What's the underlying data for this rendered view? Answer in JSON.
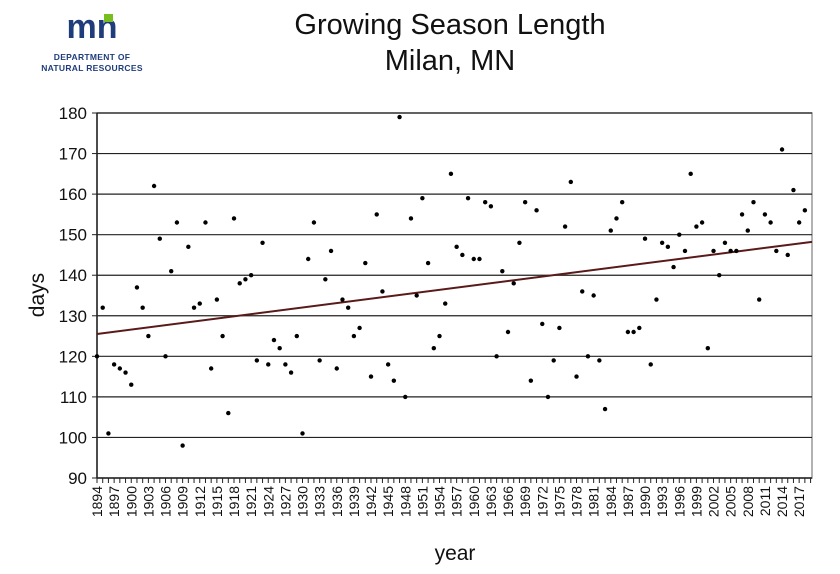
{
  "logo": {
    "mark": "mn",
    "line1": "DEPARTMENT OF",
    "line2": "NATURAL RESOURCES",
    "colors": {
      "blue": "#1f3d7a",
      "green": "#78be20"
    }
  },
  "chart_data": {
    "type": "scatter",
    "title": "Growing Season Length",
    "subtitle": "Milan, MN",
    "xlabel": "year",
    "ylabel": "days",
    "ylim": [
      90,
      180
    ],
    "yticks": [
      90,
      100,
      110,
      120,
      130,
      140,
      150,
      160,
      170,
      180
    ],
    "xlim": [
      1894,
      2018
    ],
    "xtick_step": 3,
    "grid": "horizontal",
    "marker_color": "#000000",
    "trendline": {
      "color": "#5a1a1a",
      "start": [
        1894,
        125.5
      ],
      "end": [
        2018,
        148
      ]
    },
    "x": [
      1894,
      1895,
      1896,
      1897,
      1898,
      1899,
      1900,
      1901,
      1902,
      1903,
      1904,
      1905,
      1906,
      1907,
      1908,
      1909,
      1910,
      1911,
      1912,
      1913,
      1914,
      1915,
      1916,
      1917,
      1918,
      1919,
      1920,
      1921,
      1922,
      1923,
      1924,
      1925,
      1926,
      1927,
      1928,
      1929,
      1930,
      1931,
      1932,
      1933,
      1934,
      1935,
      1936,
      1937,
      1938,
      1939,
      1940,
      1941,
      1942,
      1943,
      1944,
      1945,
      1946,
      1947,
      1948,
      1949,
      1950,
      1951,
      1952,
      1953,
      1954,
      1955,
      1956,
      1957,
      1958,
      1959,
      1960,
      1961,
      1962,
      1963,
      1964,
      1965,
      1966,
      1967,
      1968,
      1969,
      1970,
      1971,
      1972,
      1973,
      1974,
      1975,
      1976,
      1977,
      1978,
      1979,
      1980,
      1981,
      1982,
      1983,
      1984,
      1985,
      1986,
      1987,
      1988,
      1989,
      1990,
      1991,
      1992,
      1993,
      1994,
      1995,
      1996,
      1997,
      1998,
      1999,
      2000,
      2001,
      2002,
      2003,
      2004,
      2005,
      2006,
      2007,
      2008,
      2009,
      2010,
      2011,
      2012,
      2013,
      2014,
      2015,
      2016,
      2017,
      2018
    ],
    "y": [
      120,
      132,
      101,
      118,
      117,
      116,
      113,
      137,
      132,
      125,
      162,
      149,
      120,
      141,
      153,
      98,
      147,
      132,
      133,
      153,
      117,
      134,
      125,
      106,
      154,
      138,
      139,
      140,
      119,
      148,
      118,
      124,
      122,
      118,
      116,
      125,
      101,
      144,
      153,
      119,
      139,
      146,
      117,
      134,
      132,
      125,
      127,
      143,
      115,
      155,
      136,
      118,
      114,
      179,
      110,
      154,
      135,
      159,
      143,
      122,
      125,
      133,
      165,
      147,
      145,
      159,
      144,
      144,
      158,
      157,
      120,
      141,
      126,
      138,
      148,
      158,
      114,
      156,
      128,
      110,
      119,
      127,
      152,
      163,
      115,
      136,
      120,
      135,
      119,
      107,
      151,
      154,
      158,
      126,
      126,
      127,
      149,
      118,
      134,
      148,
      147,
      142,
      150,
      146,
      165,
      152,
      153,
      122,
      146,
      140,
      148,
      146,
      146,
      155,
      151,
      158,
      134,
      155,
      153,
      146,
      171,
      145,
      161,
      153,
      156
    ]
  }
}
